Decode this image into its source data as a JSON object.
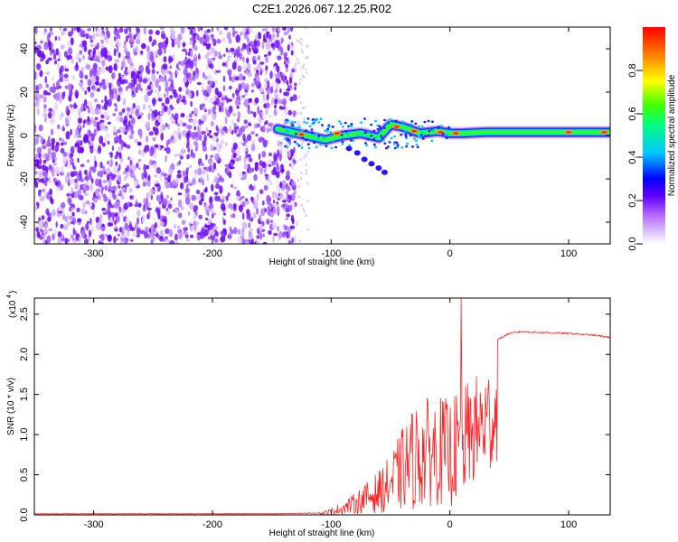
{
  "title": "C2E1.2026.067.12.25.R02",
  "chart_data": [
    {
      "type": "heatmap",
      "name": "spectrogram",
      "xlabel": "Height of straight line (km)",
      "ylabel": "Frequency (Hz)",
      "xlim": [
        -350,
        135
      ],
      "ylim": [
        -50,
        50
      ],
      "xticks": [
        -300,
        -200,
        -100,
        0,
        100
      ],
      "yticks": [
        -40,
        -20,
        0,
        20,
        40
      ],
      "noise_region_x": [
        -350,
        -130
      ],
      "signal_track": [
        {
          "x": -145,
          "y": 3
        },
        {
          "x": -125,
          "y": 0.5
        },
        {
          "x": -105,
          "y": -2
        },
        {
          "x": -90,
          "y": 0
        },
        {
          "x": -75,
          "y": 1
        },
        {
          "x": -60,
          "y": -1
        },
        {
          "x": -50,
          "y": 5
        },
        {
          "x": -40,
          "y": 4
        },
        {
          "x": -25,
          "y": 1
        },
        {
          "x": -10,
          "y": 2
        },
        {
          "x": 0,
          "y": 1
        },
        {
          "x": 10,
          "y": 1
        },
        {
          "x": 30,
          "y": 1.5
        },
        {
          "x": 135,
          "y": 1.5
        }
      ],
      "colorbar": {
        "label": "Normalized spectral amplitude",
        "min": 0.0,
        "max": 1.0,
        "ticks": [
          "0.0",
          "0.2",
          "0.4",
          "0.6",
          "0.8"
        ],
        "colors": [
          "#ffffff",
          "#c080ff",
          "#8000ff",
          "#0000ff",
          "#00d0ff",
          "#00ff60",
          "#ffff00",
          "#ff8000",
          "#ff0000"
        ]
      }
    },
    {
      "type": "line",
      "name": "snr",
      "xlabel": "Height of straight line (km)",
      "ylabel": "SNR (10 * v/v)",
      "scale_label": "(x10",
      "scale_exp": "4",
      "xlim": [
        -350,
        135
      ],
      "ylim": [
        0,
        2.7
      ],
      "xticks": [
        -300,
        -200,
        -100,
        0,
        100
      ],
      "yticks": [
        "0.0",
        "0.5",
        "1.0",
        "1.5",
        "2.0",
        "2.5"
      ],
      "color": "#ff2020",
      "series": [
        {
          "name": "SNR",
          "points": [
            {
              "x": -350,
              "y": 0.01
            },
            {
              "x": -300,
              "y": 0.01
            },
            {
              "x": -250,
              "y": 0.01
            },
            {
              "x": -200,
              "y": 0.01
            },
            {
              "x": -150,
              "y": 0.01
            },
            {
              "x": -110,
              "y": 0.02
            },
            {
              "x": -100,
              "y": 0.06
            },
            {
              "x": -90,
              "y": 0.12
            },
            {
              "x": -80,
              "y": 0.2
            },
            {
              "x": -70,
              "y": 0.3
            },
            {
              "x": -60,
              "y": 0.4
            },
            {
              "x": -50,
              "y": 0.55
            },
            {
              "x": -40,
              "y": 0.8
            },
            {
              "x": -30,
              "y": 1.0
            },
            {
              "x": -20,
              "y": 1.1
            },
            {
              "x": -10,
              "y": 1.2
            },
            {
              "x": 0,
              "y": 1.05
            },
            {
              "x": 5,
              "y": 1.25
            },
            {
              "x": 10,
              "y": 1.5
            },
            {
              "x": 20,
              "y": 1.7
            },
            {
              "x": 30,
              "y": 1.95
            },
            {
              "x": 40,
              "y": 2.18
            },
            {
              "x": 50,
              "y": 2.26
            },
            {
              "x": 60,
              "y": 2.28
            },
            {
              "x": 80,
              "y": 2.27
            },
            {
              "x": 100,
              "y": 2.26
            },
            {
              "x": 120,
              "y": 2.24
            },
            {
              "x": 135,
              "y": 2.21
            }
          ]
        }
      ]
    }
  ]
}
